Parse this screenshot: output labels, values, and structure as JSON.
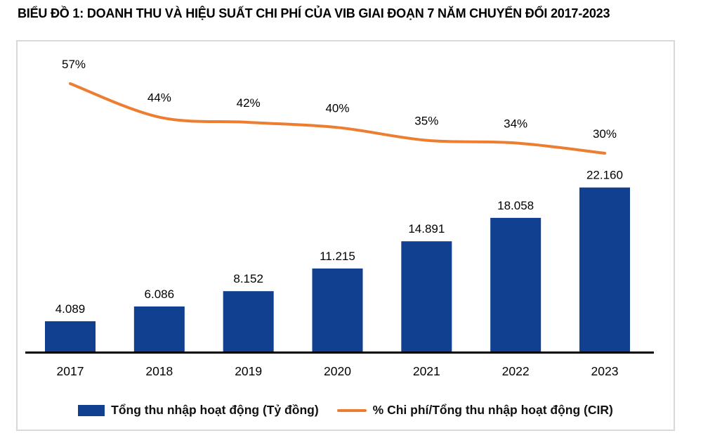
{
  "title": "BIỂU ĐỒ 1: DOANH THU VÀ HIỆU SUẤT CHI PHÍ CỦA VIB GIAI ĐOẠN 7 NĂM CHUYỂN ĐỔI 2017-2023",
  "colors": {
    "bar": "#10408F",
    "line": "#ED7D31",
    "text": "#000000",
    "frame_border": "#D9D9D9",
    "axis": "#000000"
  },
  "chart_data": {
    "type": "bar",
    "subtype": "combo-bar-line",
    "title": "BIỂU ĐỒ 1: DOANH THU VÀ HIỆU SUẤT CHI PHÍ CỦA VIB GIAI ĐOẠN 7 NĂM CHUYỂN ĐỔI 2017-2023",
    "categories": [
      "2017",
      "2018",
      "2019",
      "2020",
      "2021",
      "2022",
      "2023"
    ],
    "series": [
      {
        "name": "Tổng thu nhập hoạt động (Tỷ đồng)",
        "type": "bar",
        "unit": "Tỷ đồng",
        "color": "#10408F",
        "values": [
          4089,
          6086,
          8152,
          11215,
          14891,
          18058,
          22160
        ],
        "labels": [
          "4.089",
          "6.086",
          "8.152",
          "11.215",
          "14.891",
          "18.058",
          "22.160"
        ]
      },
      {
        "name": "% Chi phí/Tổng thu nhập hoạt động (CIR)",
        "type": "line",
        "unit": "%",
        "color": "#ED7D31",
        "values": [
          57,
          44,
          42,
          40,
          35,
          34,
          30
        ],
        "labels": [
          "57%",
          "44%",
          "42%",
          "40%",
          "35%",
          "34%",
          "30%"
        ]
      }
    ],
    "xlabel": "",
    "ylabel": "",
    "y_axis_visible": false,
    "x_axis_line": true,
    "grid": false,
    "data_labels": true,
    "legend_position": "bottom",
    "bar_value_range_shown": [
      4089,
      22160
    ],
    "cir_value_range_shown": [
      30,
      57
    ]
  }
}
